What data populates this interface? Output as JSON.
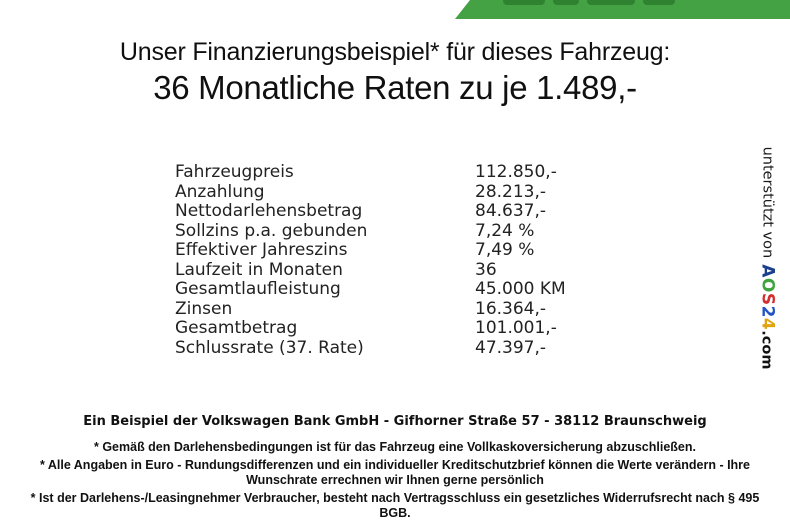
{
  "banner": {
    "color": "#44a244",
    "mark_color": "#1f6a21"
  },
  "title": {
    "line1": "Unser Finanzierungsbeispiel* für dieses Fahrzeug:",
    "line2": "36 Monatliche Raten zu je 1.489,-"
  },
  "finance": {
    "rows": [
      {
        "label": "Fahrzeugpreis",
        "value": "112.850,-"
      },
      {
        "label": "Anzahlung",
        "value": "28.213,-"
      },
      {
        "label": "Nettodarlehensbetrag",
        "value": "84.637,-"
      },
      {
        "label": "Sollzins p.a. gebunden",
        "value": "7,24 %"
      },
      {
        "label": "Effektiver Jahreszins",
        "value": "7,49 %"
      },
      {
        "label": "Laufzeit in Monaten",
        "value": "36"
      },
      {
        "label": "Gesamtlaufleistung",
        "value": "45.000 KM"
      },
      {
        "label": "Zinsen",
        "value": "16.364,-"
      },
      {
        "label": "Gesamtbetrag",
        "value": "101.001,-"
      },
      {
        "label": "Schlussrate (37. Rate)",
        "value": "47.397,-"
      }
    ]
  },
  "footer": {
    "bank_line": "Ein Beispiel der Volkswagen Bank GmbH - Gifhorner Straße 57 - 38112 Braunschweig",
    "disclaimers": [
      "* Gemäß den Darlehensbedingungen ist für das Fahrzeug eine Vollkaskoversicherung abzuschließen.",
      "* Alle Angaben in Euro - Rundungsdifferenzen und ein individueller Kreditschutzbrief können die Werte verändern - Ihre Wunschrate errechnen wir Ihnen gerne persönlich",
      "* Ist der Darlehens-/Leasingnehmer Verbraucher, besteht nach Vertragsschluss ein gesetzliches Widerrufsrecht nach § 495 BGB."
    ]
  },
  "support": {
    "label": "unterstützt von",
    "logo_letters": [
      {
        "char": "A",
        "color": "#1b3f8f"
      },
      {
        "char": "O",
        "color": "#3fa43f"
      },
      {
        "char": "S",
        "color": "#d32f2f"
      },
      {
        "char": "2",
        "color": "#2253c2"
      },
      {
        "char": "4",
        "color": "#e0a410"
      }
    ],
    "logo_suffix": ".com"
  }
}
